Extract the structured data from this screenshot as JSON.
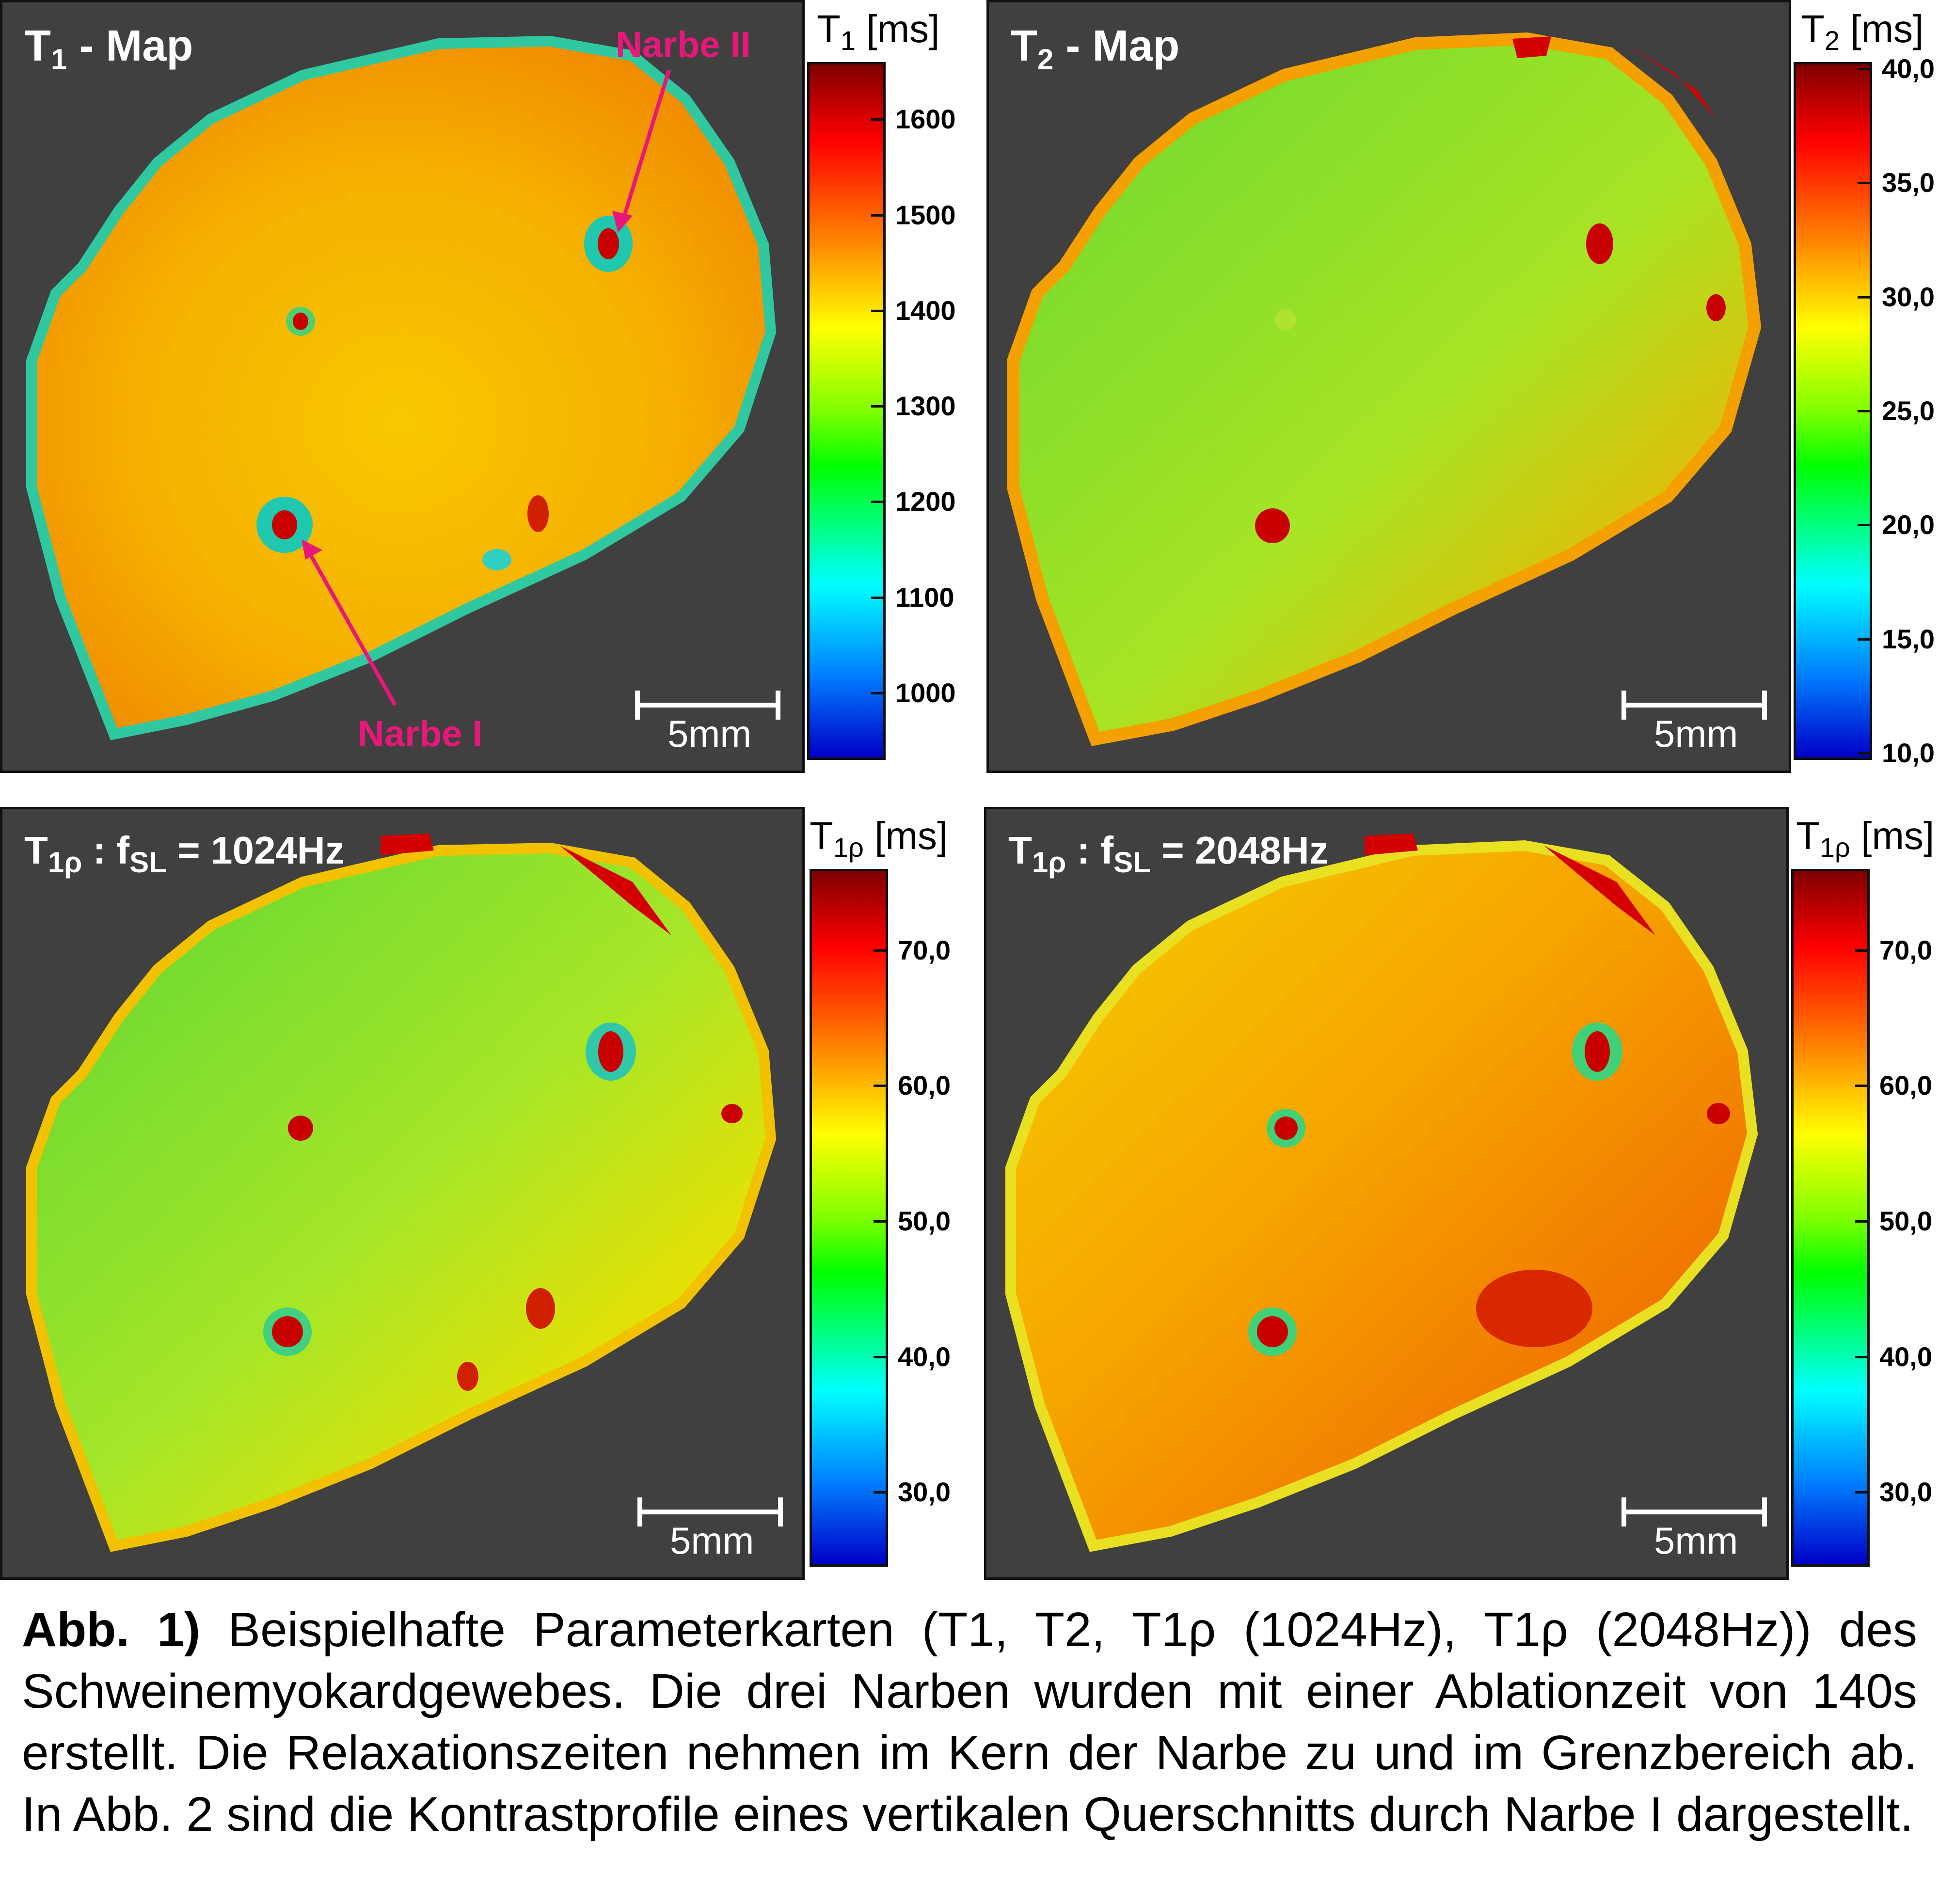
{
  "panels": [
    {
      "id": "t1",
      "title_main": "T",
      "title_sub": "1",
      "title_rest": " - Map",
      "colorbar_title_main": "T",
      "colorbar_title_sub": "1",
      "colorbar_unit": " [ms]",
      "ticks": [
        "1600",
        "1500",
        "1400",
        "1300",
        "1200",
        "1100",
        "1000"
      ],
      "tick_values": [
        1600,
        1500,
        1400,
        1300,
        1200,
        1100,
        1000
      ],
      "range": [
        930,
        1660
      ],
      "scale_label": "5mm",
      "tissue_color": "#f5d000",
      "annotations": [
        "Narbe II",
        "Narbe I"
      ]
    },
    {
      "id": "t2",
      "title_main": "T",
      "title_sub": "2",
      "title_rest": " - Map",
      "colorbar_title_main": "T",
      "colorbar_title_sub": "2",
      "colorbar_unit": " [ms]",
      "ticks": [
        "40,0",
        "35,0",
        "30,0",
        "25,0",
        "20,0",
        "15,0",
        "10,0"
      ],
      "tick_values": [
        40,
        35,
        30,
        25,
        20,
        15,
        10
      ],
      "range": [
        9.7,
        40.3
      ],
      "scale_label": "5mm",
      "tissue_color": "#7ee02a"
    },
    {
      "id": "t1rho1024",
      "title_main": "T",
      "title_sub": "1ρ",
      "title_rest": " : f",
      "title_sub2": "SL",
      "title_rest2": " = 1024Hz",
      "colorbar_title_main": "T",
      "colorbar_title_sub": "1ρ",
      "colorbar_unit": " [ms]",
      "ticks": [
        "70,0",
        "60,0",
        "50,0",
        "40,0",
        "30,0"
      ],
      "tick_values": [
        70,
        60,
        50,
        40,
        30
      ],
      "range": [
        24.5,
        76
      ],
      "scale_label": "5mm",
      "tissue_color": "#b8ec20"
    },
    {
      "id": "t1rho2048",
      "title_main": "T",
      "title_sub": "1ρ",
      "title_rest": " : f",
      "title_sub2": "SL",
      "title_rest2": " = 2048Hz",
      "colorbar_title_main": "T",
      "colorbar_title_sub": "1ρ",
      "colorbar_unit": " [ms]",
      "ticks": [
        "70,0",
        "60,0",
        "50,0",
        "40,0",
        "30,0"
      ],
      "tick_values": [
        70,
        60,
        50,
        40,
        30
      ],
      "range": [
        24.5,
        76
      ],
      "scale_label": "5mm",
      "tissue_color": "#ffa000"
    }
  ],
  "caption": {
    "label": "Abb. 1)",
    "text": " Beispielhafte Parameterkarten (T1, T2, T1ρ (1024Hz), T1ρ (2048Hz)) des Schweinemyokardgewebes. Die drei Narben wurden mit einer Ablationzeit von 140s erstellt. Die Relaxationszeiten nehmen im Kern der Narbe zu und im Grenzbereich ab. In Abb. 2 sind die Kontrastprofile eines vertikalen Querschnitts durch Narbe I dargestellt."
  },
  "colors": {
    "background_map": "#404040",
    "scar_core": "#c80000",
    "scar_label": "#e8187a"
  }
}
